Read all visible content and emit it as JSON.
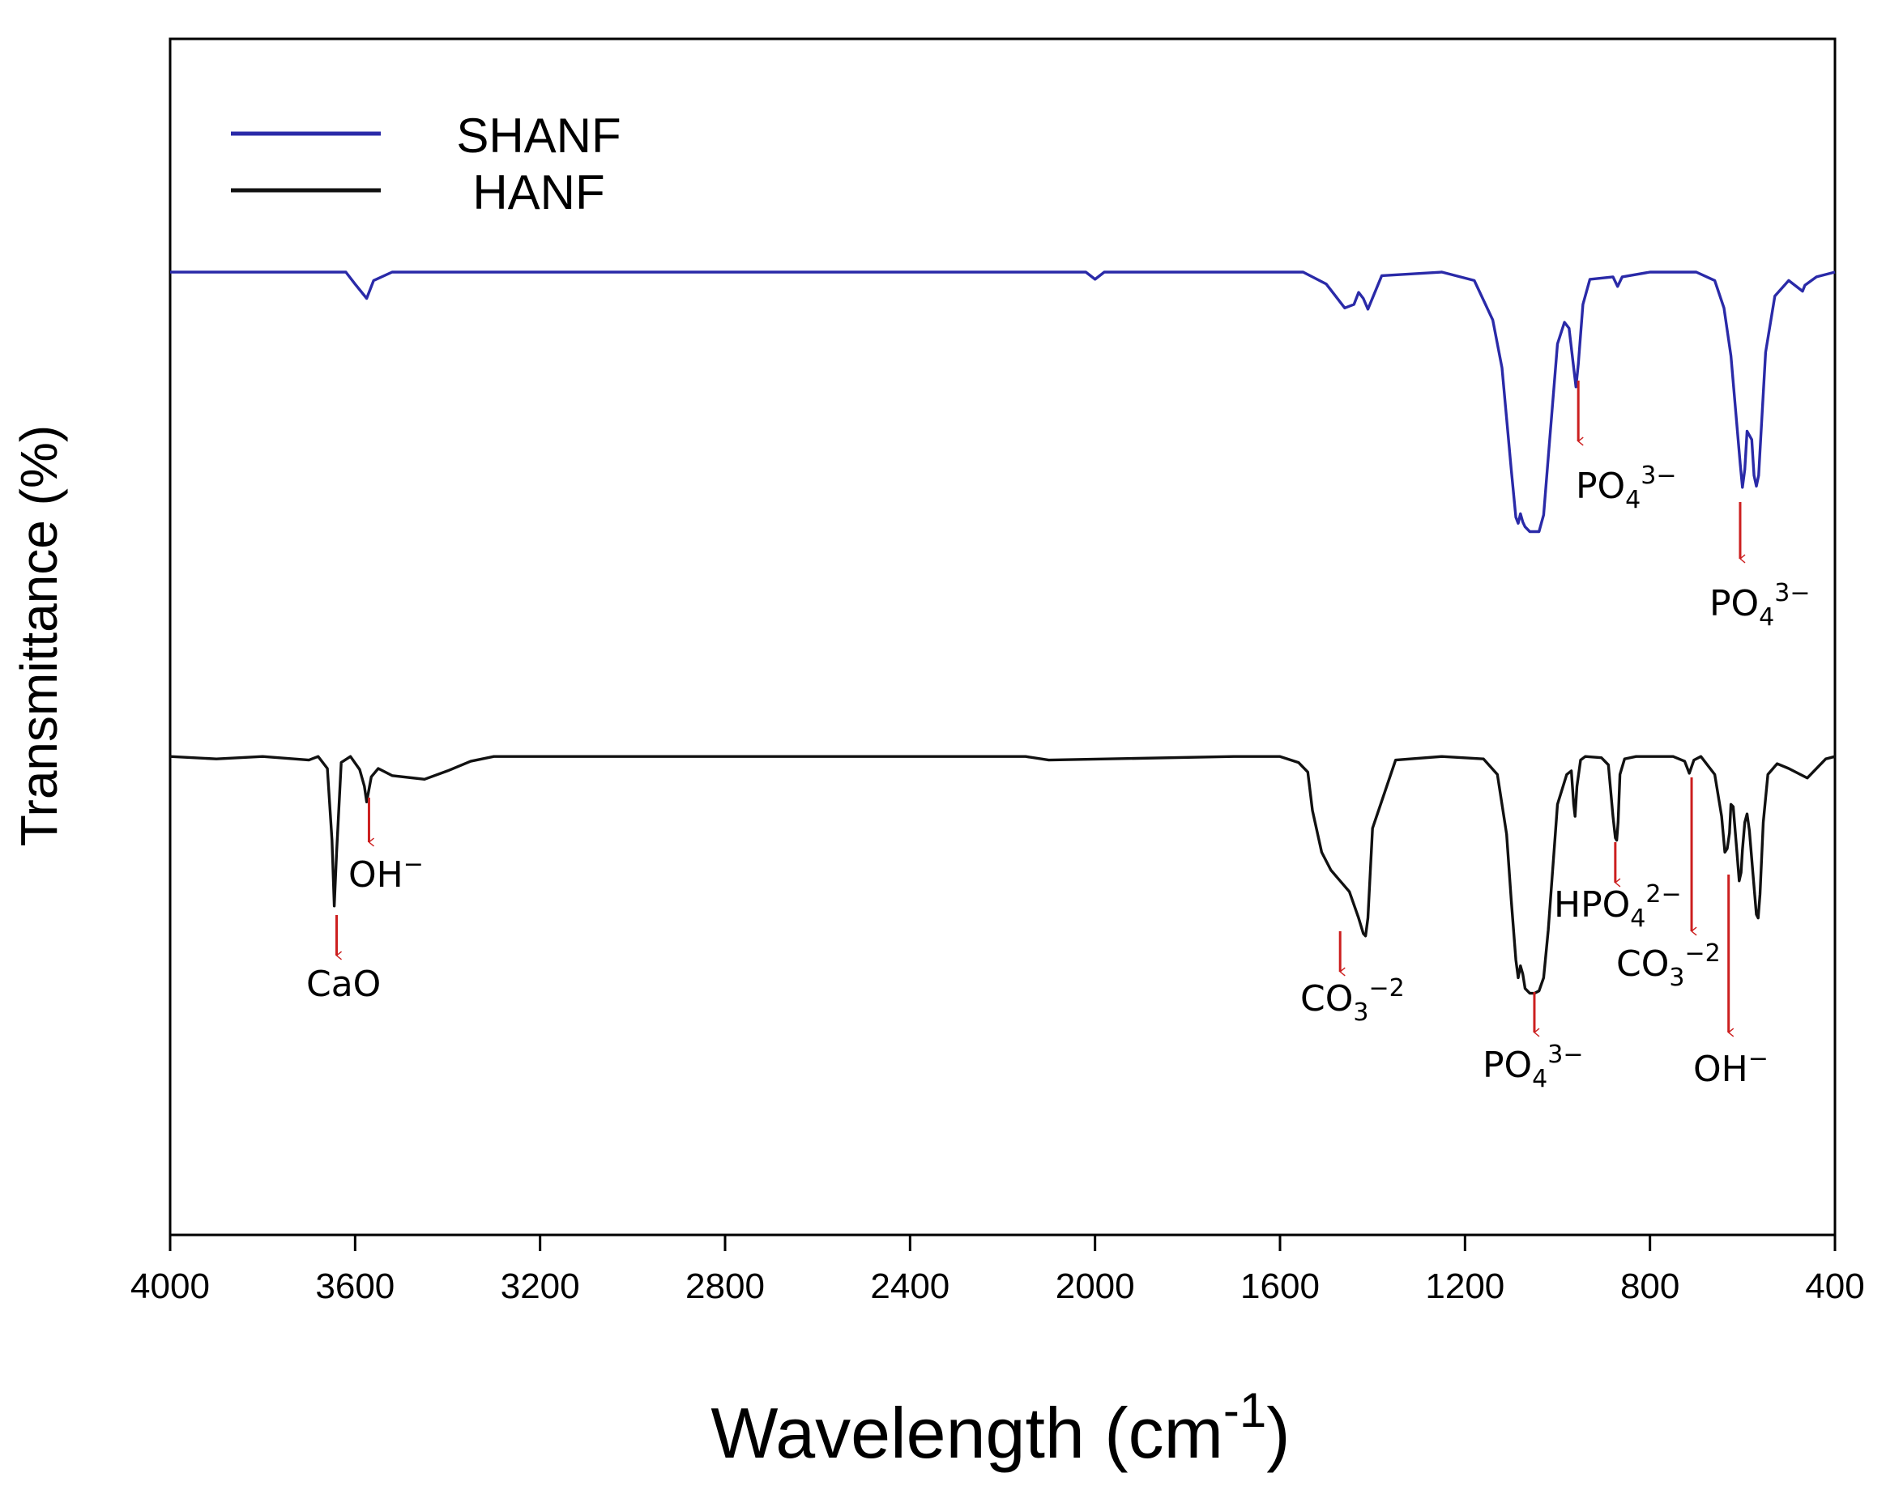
{
  "chart_data": {
    "type": "line",
    "xlabel": "Wavelength (cm",
    "xlabel_superscript": "-1",
    "xlabel_close": ")",
    "ylabel": "Transmittance (%)",
    "xlim": [
      4000,
      400
    ],
    "ylim": [
      0,
      100
    ],
    "x_reversed": true,
    "y_tick_labels_shown": false,
    "grid": false,
    "legend_position": "top-left",
    "xticks": [
      "4000",
      "3600",
      "3200",
      "2800",
      "2400",
      "2000",
      "1600",
      "1200",
      "800",
      "400"
    ],
    "series": [
      {
        "name": "SHANF",
        "color": "#2a2aa8",
        "x": [
          4000,
          3620,
          3600,
          3575,
          3560,
          3520,
          3000,
          2020,
          2000,
          1980,
          1550,
          1500,
          1460,
          1440,
          1430,
          1420,
          1410,
          1380,
          1250,
          1180,
          1140,
          1120,
          1100,
          1090,
          1085,
          1080,
          1075,
          1070,
          1060,
          1040,
          1030,
          1020,
          1000,
          985,
          975,
          965,
          960,
          955,
          945,
          930,
          880,
          870,
          860,
          800,
          700,
          660,
          640,
          625,
          615,
          605,
          600,
          595,
          590,
          580,
          575,
          570,
          565,
          560,
          550,
          530,
          500,
          470,
          465,
          440,
          400
        ],
        "y": [
          80.5,
          80.5,
          79.5,
          78.3,
          79.8,
          80.5,
          80.5,
          80.5,
          79.9,
          80.5,
          80.5,
          79.5,
          77.5,
          77.8,
          78.8,
          78.3,
          77.4,
          80.2,
          80.5,
          79.8,
          76.5,
          72.5,
          64,
          60,
          59.5,
          60.3,
          59.6,
          59.2,
          58.8,
          58.8,
          60.2,
          65,
          74.5,
          76.3,
          75.8,
          72.5,
          70.9,
          72.8,
          77.8,
          79.9,
          80.1,
          79.3,
          80.1,
          80.5,
          80.5,
          79.8,
          77.5,
          73.5,
          69,
          64.5,
          62.5,
          64,
          67.2,
          66.5,
          63.5,
          62.6,
          63.5,
          67,
          73.8,
          78.5,
          79.8,
          78.9,
          79.4,
          80.1,
          80.5
        ]
      },
      {
        "name": "HANF",
        "color": "#111111",
        "x": [
          4000,
          3900,
          3800,
          3700,
          3680,
          3660,
          3650,
          3645,
          3640,
          3630,
          3610,
          3590,
          3580,
          3575,
          3565,
          3550,
          3520,
          3450,
          3400,
          3350,
          3300,
          2700,
          2150,
          2100,
          1700,
          1600,
          1560,
          1540,
          1530,
          1510,
          1490,
          1470,
          1450,
          1430,
          1420,
          1415,
          1410,
          1400,
          1350,
          1250,
          1160,
          1130,
          1110,
          1100,
          1090,
          1085,
          1080,
          1075,
          1070,
          1060,
          1050,
          1040,
          1030,
          1020,
          1000,
          980,
          970,
          965,
          962,
          958,
          950,
          940,
          905,
          890,
          880,
          875,
          872,
          869,
          865,
          855,
          830,
          750,
          725,
          715,
          705,
          690,
          660,
          645,
          638,
          633,
          628,
          625,
          620,
          612,
          607,
          603,
          600,
          595,
          590,
          585,
          578,
          570,
          566,
          562,
          555,
          545,
          525,
          500,
          460,
          420,
          400
        ],
        "y": [
          40,
          39.8,
          40,
          39.7,
          40,
          39,
          33,
          27.5,
          32,
          39.5,
          40,
          38.9,
          37.5,
          36.2,
          38.3,
          39,
          38.4,
          38.1,
          38.8,
          39.6,
          40,
          40,
          40,
          39.7,
          40,
          40,
          39.5,
          38.7,
          35.5,
          32,
          30.5,
          29.6,
          28.7,
          26.5,
          25.2,
          25,
          26.5,
          34,
          39.7,
          40,
          39.8,
          38.5,
          33.5,
          28,
          23,
          21.5,
          22.5,
          21.8,
          20.6,
          20.2,
          20.2,
          20.4,
          21.5,
          25.5,
          36,
          38.5,
          38.8,
          36,
          35,
          37.5,
          39.7,
          40,
          39.9,
          39.3,
          35,
          33.2,
          33,
          34.5,
          38.5,
          39.8,
          40,
          40,
          39.6,
          38.6,
          39.7,
          40,
          38.5,
          35,
          32,
          32.3,
          33.6,
          36,
          35.8,
          32,
          29.6,
          30.3,
          32.2,
          34.5,
          35.2,
          33.8,
          30.5,
          26.8,
          26.5,
          28.5,
          34.5,
          38.5,
          39.4,
          39,
          38.2,
          39.8,
          40
        ]
      }
    ],
    "annotations": [
      {
        "id": "shanf-po4-960",
        "x": 955,
        "label": "PO",
        "sub": "4",
        "sup": "3−"
      },
      {
        "id": "shanf-po4-600",
        "x": 605,
        "label": "PO",
        "sub": "4",
        "sup": "3−"
      },
      {
        "id": "hanf-cao",
        "x": 3640,
        "label": "CaO",
        "sub": "",
        "sup": ""
      },
      {
        "id": "hanf-oh-3570",
        "x": 3570,
        "label": "OH",
        "sub": "",
        "sup": "−"
      },
      {
        "id": "hanf-co3-1450",
        "x": 1470,
        "label": "CO",
        "sub": "3",
        "sup": "−2"
      },
      {
        "id": "hanf-po4-1040",
        "x": 1050,
        "label": "PO",
        "sub": "4",
        "sup": "3−"
      },
      {
        "id": "hanf-hpo4-870",
        "x": 875,
        "label": "HPO",
        "sub": "4",
        "sup": "2−"
      },
      {
        "id": "hanf-co3-710",
        "x": 710,
        "label": "CO",
        "sub": "3",
        "sup": "−2"
      },
      {
        "id": "hanf-oh-630",
        "x": 630,
        "label": "OH",
        "sub": "",
        "sup": "−"
      }
    ]
  }
}
